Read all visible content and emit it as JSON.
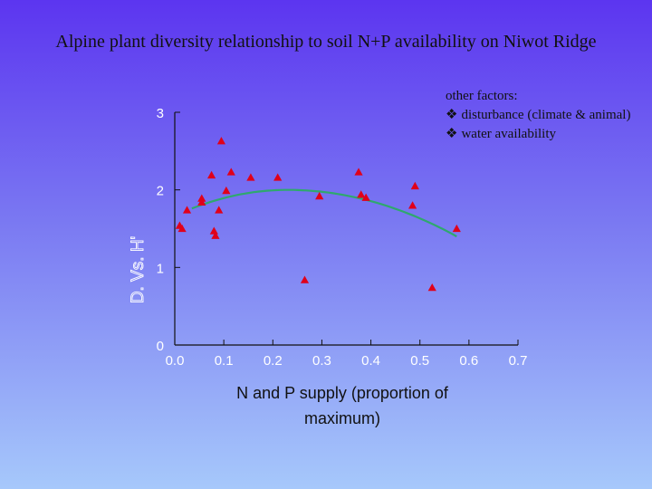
{
  "title": "Alpine plant diversity relationship to soil N+P availability on Niwot Ridge",
  "side_note": {
    "heading": "other factors:",
    "items": [
      "disturbance (climate & animal)",
      "water availability"
    ]
  },
  "colors": {
    "marker": "#e0001a",
    "fit_line": "#2fa86e",
    "axis": "#111111",
    "tick_label": "#ffffff"
  },
  "chart_data": {
    "type": "scatter",
    "title": "",
    "xlabel": "N and P supply (proportion of maximum)",
    "ylabel": "D. Vs. H'",
    "xlim": [
      0,
      0.7
    ],
    "ylim": [
      0,
      3
    ],
    "xticks": [
      "0.0",
      "0.1",
      "0.2",
      "0.3",
      "0.4",
      "0.5",
      "0.6",
      "0.7"
    ],
    "yticks": [
      "0",
      "1",
      "2",
      "3"
    ],
    "grid": false,
    "marker": "triangle",
    "points": [
      {
        "x": 0.01,
        "y": 1.54
      },
      {
        "x": 0.015,
        "y": 1.5
      },
      {
        "x": 0.025,
        "y": 1.74
      },
      {
        "x": 0.055,
        "y": 1.84
      },
      {
        "x": 0.055,
        "y": 1.89
      },
      {
        "x": 0.075,
        "y": 2.19
      },
      {
        "x": 0.08,
        "y": 1.47
      },
      {
        "x": 0.083,
        "y": 1.41
      },
      {
        "x": 0.09,
        "y": 1.74
      },
      {
        "x": 0.095,
        "y": 2.63
      },
      {
        "x": 0.105,
        "y": 1.99
      },
      {
        "x": 0.115,
        "y": 2.23
      },
      {
        "x": 0.155,
        "y": 2.16
      },
      {
        "x": 0.21,
        "y": 2.16
      },
      {
        "x": 0.265,
        "y": 0.84
      },
      {
        "x": 0.295,
        "y": 1.92
      },
      {
        "x": 0.375,
        "y": 2.23
      },
      {
        "x": 0.38,
        "y": 1.94
      },
      {
        "x": 0.39,
        "y": 1.9
      },
      {
        "x": 0.485,
        "y": 1.8
      },
      {
        "x": 0.49,
        "y": 2.05
      },
      {
        "x": 0.525,
        "y": 0.74
      },
      {
        "x": 0.575,
        "y": 1.5
      }
    ],
    "fit": {
      "type": "quadratic",
      "x_range": [
        0.035,
        0.575
      ],
      "y_at_start": 1.76,
      "y_peak": 2.0,
      "x_peak": 0.23,
      "y_at_end": 1.4
    }
  }
}
